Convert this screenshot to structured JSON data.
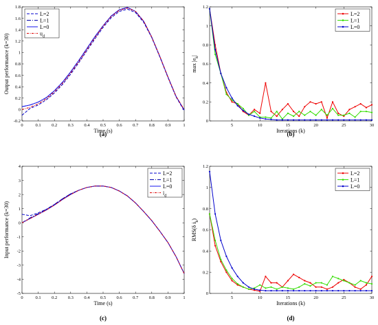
{
  "chart_data": [
    {
      "type": "line",
      "panel_label": "(a)",
      "xlabel": "Time (s)",
      "ylabel": "Output performance (k=30)",
      "xlim": [
        0,
        1
      ],
      "ylim": [
        -0.2,
        1.8
      ],
      "xticks": [
        "0",
        "0.1",
        "0.2",
        "0.3",
        "0.4",
        "0.5",
        "0.6",
        "0.7",
        "0.8",
        "0.9",
        "1"
      ],
      "yticks": [
        "-0.2",
        "0",
        "0.2",
        "0.4",
        "0.6",
        "0.8",
        "1",
        "1.2",
        "1.4",
        "1.6",
        "1.8"
      ],
      "legend_position": "top-left",
      "x": [
        0,
        0.05,
        0.1,
        0.15,
        0.2,
        0.25,
        0.3,
        0.35,
        0.4,
        0.45,
        0.5,
        0.55,
        0.6,
        0.65,
        0.7,
        0.75,
        0.8,
        0.85,
        0.9,
        0.95,
        1.0
      ],
      "series": [
        {
          "name": "L=2",
          "color": "#0000cc",
          "dash": "4,2",
          "values": [
            -0.1,
            0.02,
            0.08,
            0.17,
            0.29,
            0.44,
            0.62,
            0.82,
            1.03,
            1.24,
            1.44,
            1.61,
            1.72,
            1.76,
            1.7,
            1.53,
            1.26,
            0.92,
            0.56,
            0.22,
            -0.02
          ]
        },
        {
          "name": "L=1",
          "color": "#0000aa",
          "dash": "6,2,1,2",
          "values": [
            0.05,
            0.08,
            0.13,
            0.21,
            0.33,
            0.48,
            0.66,
            0.86,
            1.07,
            1.28,
            1.47,
            1.64,
            1.75,
            1.79,
            1.72,
            1.55,
            1.27,
            0.93,
            0.57,
            0.23,
            -0.01
          ]
        },
        {
          "name": "L=0",
          "color": "#1515ee",
          "dash": "",
          "values": [
            0.05,
            0.08,
            0.13,
            0.21,
            0.33,
            0.48,
            0.66,
            0.86,
            1.07,
            1.28,
            1.47,
            1.64,
            1.75,
            1.79,
            1.72,
            1.55,
            1.27,
            0.93,
            0.57,
            0.23,
            -0.01
          ]
        },
        {
          "name": "u",
          "sub": "d",
          "color": "#dd0000",
          "dash": "3,1.5,1,1.5",
          "values": [
            0.0,
            0.04,
            0.1,
            0.19,
            0.31,
            0.46,
            0.64,
            0.84,
            1.05,
            1.26,
            1.46,
            1.63,
            1.74,
            1.78,
            1.72,
            1.55,
            1.27,
            0.93,
            0.57,
            0.23,
            0.0
          ]
        }
      ]
    },
    {
      "type": "line",
      "panel_label": "(b)",
      "xlabel": "Iterations (k)",
      "ylabel": "max",
      "ylabel_sub": "k",
      "xlim": [
        1,
        30
      ],
      "ylim": [
        0,
        1.2
      ],
      "xticks": [
        "5",
        "10",
        "15",
        "20",
        "25",
        "30"
      ],
      "yticks": [
        "0",
        "0.2",
        "0.4",
        "0.6",
        "0.8",
        "1",
        "1.2"
      ],
      "legend_position": "top-right",
      "x": [
        1,
        2,
        3,
        4,
        5,
        6,
        7,
        8,
        9,
        10,
        11,
        12,
        13,
        14,
        15,
        16,
        17,
        18,
        19,
        20,
        21,
        22,
        23,
        24,
        25,
        26,
        27,
        28,
        29,
        30
      ],
      "series": [
        {
          "name": "L=2",
          "color": "#ee0000",
          "values": [
            1.18,
            0.8,
            0.5,
            0.3,
            0.2,
            0.18,
            0.1,
            0.06,
            0.12,
            0.08,
            0.4,
            0.1,
            0.05,
            0.12,
            0.18,
            0.1,
            0.05,
            0.15,
            0.2,
            0.18,
            0.2,
            0.03,
            0.2,
            0.08,
            0.05,
            0.12,
            0.15,
            0.18,
            0.14,
            0.17
          ]
        },
        {
          "name": "L=1",
          "color": "#33dd00",
          "values": [
            1.18,
            0.7,
            0.5,
            0.28,
            0.22,
            0.18,
            0.13,
            0.06,
            0.1,
            0.04,
            0.04,
            0.03,
            0.1,
            0.02,
            0.08,
            0.05,
            0.1,
            0.06,
            0.1,
            0.06,
            0.12,
            0.06,
            0.13,
            0.06,
            0.06,
            0.08,
            0.04,
            0.1,
            0.1,
            0.09
          ]
        },
        {
          "name": "L=0",
          "color": "#0000cc",
          "values": [
            1.18,
            0.75,
            0.5,
            0.35,
            0.24,
            0.16,
            0.11,
            0.07,
            0.05,
            0.03,
            0.02,
            0.015,
            0.01,
            0.01,
            0.01,
            0.01,
            0.01,
            0.01,
            0.01,
            0.01,
            0.01,
            0.01,
            0.01,
            0.01,
            0.01,
            0.01,
            0.01,
            0.01,
            0.01,
            0.01
          ]
        }
      ]
    },
    {
      "type": "line",
      "panel_label": "(c)",
      "xlabel": "Time (s)",
      "ylabel": "Input performance (k=30)",
      "xlim": [
        0,
        1
      ],
      "ylim": [
        -5,
        4
      ],
      "xticks": [
        "0",
        "0.1",
        "0.2",
        "0.3",
        "0.4",
        "0.5",
        "0.6",
        "0.7",
        "0.8",
        "0.9",
        "1"
      ],
      "yticks": [
        "-5",
        "-4",
        "-3",
        "-2",
        "-1",
        "0",
        "1",
        "2",
        "3",
        "4"
      ],
      "legend_position": "top-right",
      "x": [
        0,
        0.05,
        0.1,
        0.15,
        0.2,
        0.25,
        0.3,
        0.35,
        0.4,
        0.45,
        0.5,
        0.55,
        0.6,
        0.65,
        0.7,
        0.75,
        0.8,
        0.85,
        0.9,
        0.95,
        1.0
      ],
      "series": [
        {
          "name": "L=2",
          "color": "#0000cc",
          "dash": "4,2",
          "values": [
            0.6,
            0.5,
            0.7,
            0.95,
            1.3,
            1.7,
            2.05,
            2.3,
            2.5,
            2.6,
            2.6,
            2.5,
            2.25,
            1.9,
            1.4,
            0.8,
            0.15,
            -0.6,
            -1.4,
            -2.4,
            -3.6
          ]
        },
        {
          "name": "L=1",
          "color": "#0000aa",
          "dash": "6,2,1,2",
          "values": [
            0.0,
            0.35,
            0.65,
            0.95,
            1.3,
            1.7,
            2.05,
            2.3,
            2.5,
            2.6,
            2.6,
            2.5,
            2.25,
            1.9,
            1.4,
            0.8,
            0.15,
            -0.6,
            -1.4,
            -2.4,
            -3.6
          ]
        },
        {
          "name": "L=0",
          "color": "#1515ee",
          "dash": "",
          "values": [
            0.0,
            0.3,
            0.6,
            0.9,
            1.25,
            1.65,
            2.0,
            2.3,
            2.5,
            2.6,
            2.6,
            2.5,
            2.25,
            1.9,
            1.4,
            0.8,
            0.15,
            -0.6,
            -1.4,
            -2.4,
            -3.6
          ]
        },
        {
          "name": "i",
          "sub": "d",
          "color": "#dd0000",
          "dash": "3,1.5,1,1.5",
          "values": [
            0.0,
            0.3,
            0.6,
            0.9,
            1.25,
            1.65,
            2.0,
            2.3,
            2.5,
            2.6,
            2.6,
            2.5,
            2.25,
            1.9,
            1.4,
            0.8,
            0.15,
            -0.6,
            -1.4,
            -2.4,
            -3.6
          ]
        }
      ]
    },
    {
      "type": "line",
      "panel_label": "(d)",
      "xlabel": "Iterations (k)",
      "ylabel": "RMS(",
      "ylabel_sub": "k",
      "xlim": [
        1,
        30
      ],
      "ylim": [
        0,
        1.2
      ],
      "xticks": [
        "5",
        "10",
        "15",
        "20",
        "25",
        "30"
      ],
      "yticks": [
        "0",
        "0.2",
        "0.4",
        "0.6",
        "0.8",
        "1",
        "1.2"
      ],
      "legend_position": "top-right",
      "x": [
        1,
        2,
        3,
        4,
        5,
        6,
        7,
        8,
        9,
        10,
        11,
        12,
        13,
        14,
        15,
        16,
        17,
        18,
        19,
        20,
        21,
        22,
        23,
        24,
        25,
        26,
        27,
        28,
        29,
        30
      ],
      "series": [
        {
          "name": "L=2",
          "color": "#ee0000",
          "values": [
            0.75,
            0.45,
            0.3,
            0.2,
            0.12,
            0.08,
            0.06,
            0.04,
            0.03,
            0.02,
            0.16,
            0.1,
            0.1,
            0.06,
            0.12,
            0.18,
            0.15,
            0.12,
            0.1,
            0.06,
            0.06,
            0.04,
            0.06,
            0.1,
            0.13,
            0.1,
            0.06,
            0.04,
            0.08,
            0.16
          ]
        },
        {
          "name": "L=1",
          "color": "#33dd00",
          "values": [
            0.75,
            0.5,
            0.32,
            0.22,
            0.14,
            0.09,
            0.06,
            0.04,
            0.05,
            0.08,
            0.05,
            0.06,
            0.04,
            0.06,
            0.05,
            0.04,
            0.06,
            0.09,
            0.07,
            0.1,
            0.1,
            0.08,
            0.16,
            0.14,
            0.12,
            0.1,
            0.08,
            0.12,
            0.1,
            0.09
          ]
        },
        {
          "name": "L=0",
          "color": "#0000cc",
          "values": [
            1.15,
            0.75,
            0.5,
            0.35,
            0.24,
            0.16,
            0.1,
            0.06,
            0.04,
            0.03,
            0.025,
            0.025,
            0.025,
            0.025,
            0.025,
            0.025,
            0.025,
            0.025,
            0.025,
            0.025,
            0.025,
            0.025,
            0.025,
            0.025,
            0.025,
            0.025,
            0.025,
            0.025,
            0.025,
            0.025
          ]
        }
      ]
    }
  ]
}
